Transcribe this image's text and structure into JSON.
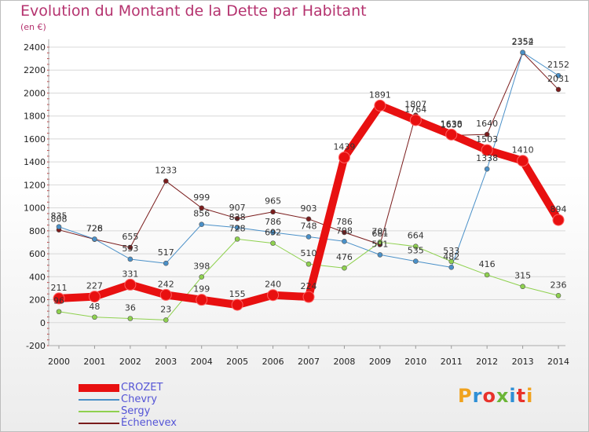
{
  "title": "Evolution du Montant de la Dette par Habitant",
  "subtitle": "(en €)",
  "logo": {
    "text": "Proxiti",
    "colors": [
      "#f0a21d",
      "#2e8fd6",
      "#e8322b",
      "#6bb536",
      "#2e8fd6",
      "#e8322b",
      "#f0a21d"
    ]
  },
  "chart_data": {
    "type": "line",
    "x": [
      "2000",
      "2001",
      "2002",
      "2003",
      "2004",
      "2005",
      "2006",
      "2007",
      "2008",
      "2009",
      "2010",
      "2011",
      "2012",
      "2013",
      "2014"
    ],
    "ylim": [
      -200,
      2400
    ],
    "yticks": [
      -200,
      0,
      200,
      400,
      600,
      800,
      1000,
      1200,
      1400,
      1600,
      1800,
      2000,
      2200,
      2400
    ],
    "grid": "horizontal",
    "legend_position": "bottom-left",
    "series": [
      {
        "name": "Échenevex",
        "color": "#7a1c1c",
        "width": 1,
        "values": [
          808,
          726,
          655,
          1233,
          999,
          907,
          965,
          903,
          786,
          681,
          1807,
          1630,
          1640,
          2352,
          2031
        ],
        "labels": [
          "808",
          "726",
          "655",
          "1233",
          "999",
          "907",
          "965",
          "903",
          "786",
          "681",
          "1807",
          "1630",
          "1640",
          "2352",
          "2031"
        ]
      },
      {
        "name": "Chevry",
        "color": "#4a90c8",
        "width": 1,
        "values": [
          835,
          728,
          553,
          517,
          856,
          828,
          786,
          748,
          708,
          591,
          535,
          482,
          1338,
          2354,
          2152
        ],
        "labels": [
          "835",
          "728",
          "553",
          "517",
          "856",
          "828",
          "786",
          "748",
          "708",
          "591",
          "535",
          "482",
          "1338",
          "2354",
          "2152"
        ]
      },
      {
        "name": "Sergy",
        "color": "#8fd14f",
        "width": 1,
        "values": [
          96,
          48,
          36,
          23,
          398,
          728,
          692,
          510,
          476,
          701,
          664,
          533,
          416,
          315,
          236
        ],
        "labels": [
          "96",
          "48",
          "36",
          "23",
          "398",
          "728",
          "692",
          "510",
          "476",
          "701",
          "664",
          "533",
          "416",
          "315",
          "236"
        ]
      },
      {
        "name": "CROZET",
        "color": "#e81010",
        "width": 10,
        "values": [
          211,
          227,
          331,
          242,
          199,
          155,
          240,
          224,
          1439,
          1891,
          1764,
          1638,
          1503,
          1410,
          894
        ],
        "labels": [
          "211",
          "227",
          "331",
          "242",
          "199",
          "155",
          "240",
          "224",
          "1439",
          "1891",
          "1764",
          "1638",
          "1503",
          "1410",
          "894"
        ]
      }
    ]
  }
}
